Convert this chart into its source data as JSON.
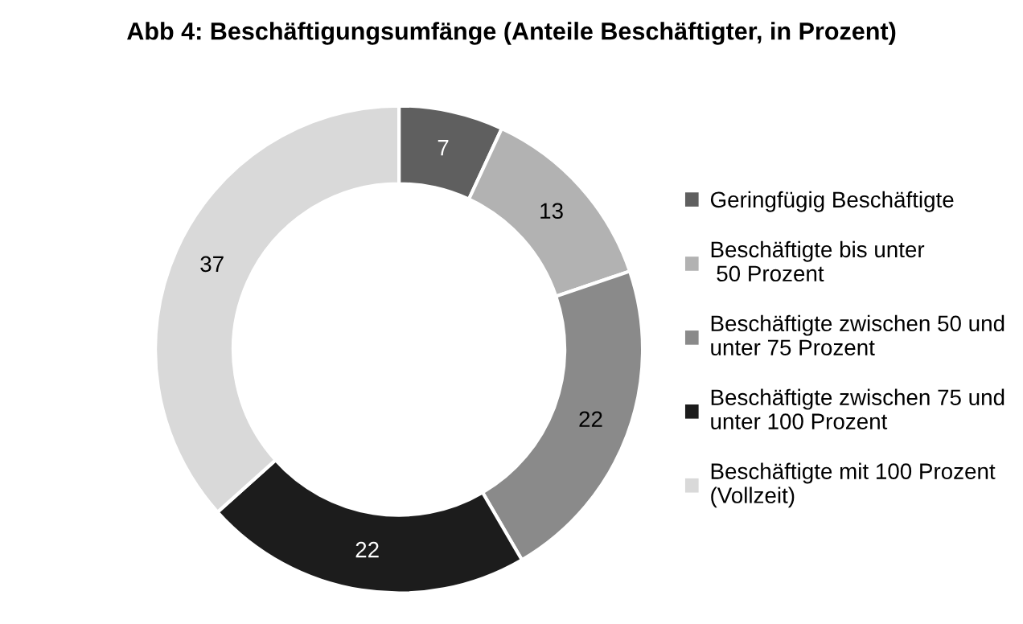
{
  "chart_data": {
    "type": "donut",
    "title": "Abb 4: Beschäftigungsumfänge (Anteile Beschäftigter, in Prozent)",
    "categories": [
      "Geringfügig Beschäftigte",
      "Beschäftigte bis unter\n 50 Prozent",
      "Beschäftigte zwischen 50 und\nunter 75 Prozent",
      "Beschäftigte zwischen 75 und\nunter 100 Prozent",
      "Beschäftigte mit 100 Prozent\n(Vollzeit)"
    ],
    "values": [
      7,
      13,
      22,
      22,
      37
    ],
    "colors": [
      "#5f5f5f",
      "#b2b2b2",
      "#8a8a8a",
      "#1c1c1c",
      "#d9d9d9"
    ],
    "data_labels": true,
    "legend": "right"
  }
}
